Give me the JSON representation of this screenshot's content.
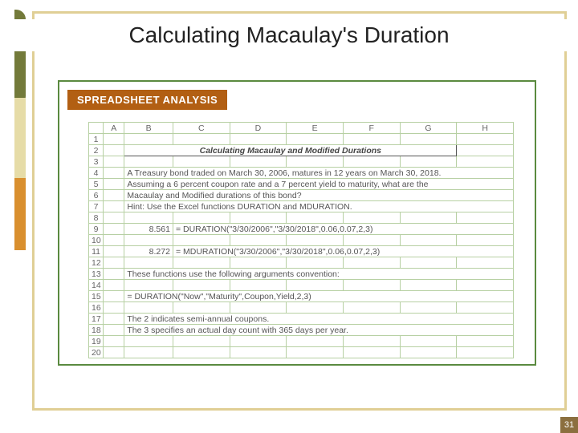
{
  "title": "Calculating Macaulay's Duration",
  "tab_label": "SPREADSHEET ANALYSIS",
  "page_number": "31",
  "columns": [
    "",
    "A",
    "B",
    "C",
    "D",
    "E",
    "F",
    "G",
    "H"
  ],
  "sheet_title": "Calculating Macaulay and Modified Durations",
  "rows": {
    "r4": "A Treasury bond traded on March 30, 2006, matures in 12 years on March 30, 2018.",
    "r5": "Assuming a 6 percent coupon rate and a 7 percent yield to maturity, what are the",
    "r6": "Macaulay and Modified durations of this bond?",
    "r7": "Hint: Use the Excel functions DURATION and MDURATION.",
    "r9_b": "8.561",
    "r9_c": "= DURATION(\"3/30/2006\",\"3/30/2018\",0.06,0.07,2,3)",
    "r11_b": "8.272",
    "r11_c": "= MDURATION(\"3/30/2006\",\"3/30/2018\",0.06,0.07,2,3)",
    "r13": "These functions use the following arguments convention:",
    "r15": "= DURATION(\"Now\",\"Maturity\",Coupon,Yield,2,3)",
    "r17": "The 2 indicates semi-annual coupons.",
    "r18": "The 3 specifies an actual day count with 365 days per year."
  },
  "colors": {
    "frame": "#e0cf95",
    "content_border": "#5a8a3f",
    "tab_bg": "#b25f13",
    "grid": "#b7d0a3",
    "pagenum_bg": "#8b6f3f"
  }
}
